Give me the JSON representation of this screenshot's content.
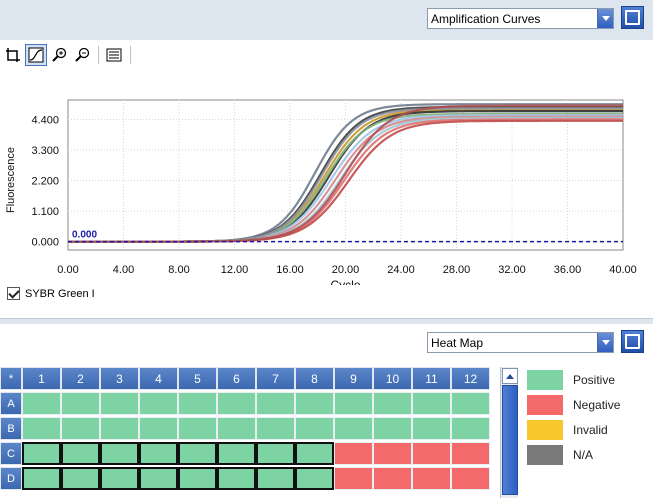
{
  "top": {
    "view_select": "Amplification Curves"
  },
  "toolbar": {
    "buttons": [
      "select",
      "linear",
      "zoom-in",
      "zoom-out",
      "settings"
    ]
  },
  "chart_data": {
    "type": "line",
    "xlabel": "Cycle",
    "ylabel": "Fluorescence",
    "xlim": [
      0,
      40
    ],
    "ylim": [
      -0.3,
      5.1
    ],
    "x_ticks": [
      "0.00",
      "4.00",
      "8.00",
      "12.00",
      "16.00",
      "20.00",
      "24.00",
      "28.00",
      "32.00",
      "36.00",
      "40.00"
    ],
    "y_ticks": [
      "0.000",
      "1.100",
      "2.200",
      "3.300",
      "4.400"
    ],
    "threshold": {
      "value": 0.0,
      "label": "0.000",
      "color": "#1a1aa6"
    },
    "grid": true,
    "series": [
      {
        "midpoint": 17.8,
        "plateau": 4.95,
        "slope": 1.35,
        "color": "#6e7c8c"
      },
      {
        "midpoint": 18.2,
        "plateau": 4.85,
        "slope": 1.4,
        "color": "#3b3b3b"
      },
      {
        "midpoint": 18.5,
        "plateau": 4.75,
        "slope": 1.45,
        "color": "#c89a2a"
      },
      {
        "midpoint": 18.8,
        "plateau": 4.7,
        "slope": 1.45,
        "color": "#2d2d2d"
      },
      {
        "midpoint": 18.6,
        "plateau": 4.6,
        "slope": 1.45,
        "color": "#7fb07f"
      },
      {
        "midpoint": 19.0,
        "plateau": 4.55,
        "slope": 1.5,
        "color": "#a0c4e8"
      },
      {
        "midpoint": 19.3,
        "plateau": 4.5,
        "slope": 1.5,
        "color": "#d08a8a"
      },
      {
        "midpoint": 19.6,
        "plateau": 4.45,
        "slope": 1.5,
        "color": "#9fc8d6"
      },
      {
        "midpoint": 19.9,
        "plateau": 4.4,
        "slope": 1.5,
        "color": "#e07070"
      },
      {
        "midpoint": 20.2,
        "plateau": 4.35,
        "slope": 1.55,
        "color": "#c24a4a"
      },
      {
        "midpoint": 18.3,
        "plateau": 4.8,
        "slope": 1.4,
        "color": "#8a8fa0"
      },
      {
        "midpoint": 20.0,
        "plateau": 4.9,
        "slope": 1.55,
        "color": "#b05050"
      }
    ],
    "legend": [
      {
        "label": "SYBR Green I",
        "checked": true
      }
    ]
  },
  "bottom": {
    "view_select": "Heat Map"
  },
  "plate": {
    "corner": "*",
    "columns": [
      "1",
      "2",
      "3",
      "4",
      "5",
      "6",
      "7",
      "8",
      "9",
      "10",
      "11",
      "12"
    ],
    "rows": [
      {
        "label": "A",
        "wells": [
          "P",
          "P",
          "P",
          "P",
          "P",
          "P",
          "P",
          "P",
          "P",
          "P",
          "P",
          "P"
        ],
        "selected": []
      },
      {
        "label": "B",
        "wells": [
          "P",
          "P",
          "P",
          "P",
          "P",
          "P",
          "P",
          "P",
          "P",
          "P",
          "P",
          "P"
        ],
        "selected": []
      },
      {
        "label": "C",
        "wells": [
          "P",
          "P",
          "P",
          "P",
          "P",
          "P",
          "P",
          "P",
          "N",
          "N",
          "N",
          "N"
        ],
        "selected": [
          0,
          1,
          2,
          3,
          4,
          5,
          6,
          7
        ]
      },
      {
        "label": "D",
        "wells": [
          "P",
          "P",
          "P",
          "P",
          "P",
          "P",
          "P",
          "P",
          "N",
          "N",
          "N",
          "N"
        ],
        "selected": [
          0,
          1,
          2,
          3,
          4,
          5,
          6,
          7
        ]
      }
    ]
  },
  "legend": {
    "items": [
      {
        "key": "P",
        "label": "Positive",
        "color": "#7dd3a4"
      },
      {
        "key": "N",
        "label": "Negative",
        "color": "#f46a6a"
      },
      {
        "key": "I",
        "label": "Invalid",
        "color": "#f7c72e"
      },
      {
        "key": "NA",
        "label": "N/A",
        "color": "#7a7a7a"
      }
    ]
  }
}
